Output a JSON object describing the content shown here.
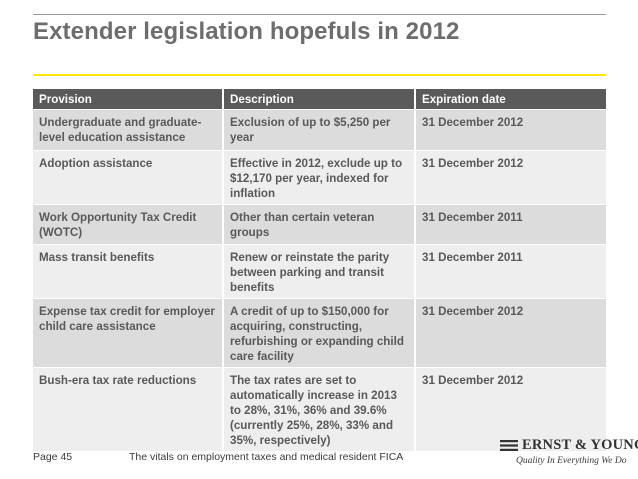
{
  "slide": {
    "title": "Extender legislation hopefuls in 2012"
  },
  "table": {
    "headers": [
      "Provision",
      "Description",
      "Expiration date"
    ],
    "rows": [
      [
        "Undergraduate and graduate-level education assistance",
        "Exclusion of up to $5,250 per year",
        "31 December 2012"
      ],
      [
        "Adoption assistance",
        "Effective in 2012, exclude up to $12,170 per year, indexed for inflation",
        "31 December 2012"
      ],
      [
        "Work Opportunity Tax Credit (WOTC)",
        "Other than certain veteran groups",
        "31 December 2011"
      ],
      [
        "Mass transit benefits",
        "Renew or reinstate the parity between parking and transit benefits",
        "31 December 2011"
      ],
      [
        "Expense tax credit for employer child care assistance",
        "A credit of up to $150,000 for acquiring, constructing, refurbishing or expanding child care facility",
        "31 December 2012"
      ],
      [
        "Bush-era tax rate reductions",
        "The tax rates are set to automatically increase in 2013 to 28%, 31%, 36% and 39.6% (currently 25%, 28%, 33% and 35%, respectively)",
        "31 December 2012"
      ]
    ]
  },
  "footer": {
    "page": "Page 45",
    "caption": "The vitals on employment taxes and medical resident FICA"
  },
  "logo": {
    "name": "ERNST & YOUNG",
    "tagline": "Quality In Everything We Do"
  },
  "colors": {
    "title": "#6d6d6d",
    "accent": "#ffe600",
    "header_bg": "#5a5a5a",
    "row_odd": "#dcdcdc",
    "row_even": "#eeeeee"
  }
}
